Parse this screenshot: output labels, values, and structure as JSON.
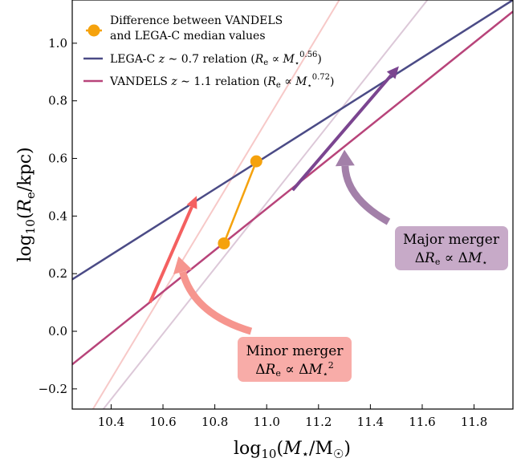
{
  "chart_data": {
    "type": "line",
    "xlim": [
      10.25,
      11.95
    ],
    "ylim": [
      -0.27,
      1.15
    ],
    "x_ticks": [
      10.4,
      10.6,
      10.8,
      11.0,
      11.2,
      11.4,
      11.6,
      11.8
    ],
    "x_tick_labels": [
      "10.4",
      "10.6",
      "10.8",
      "11.0",
      "11.2",
      "11.4",
      "11.6",
      "11.8"
    ],
    "y_ticks": [
      -0.2,
      0.0,
      0.2,
      0.4,
      0.6,
      0.8,
      1.0
    ],
    "y_tick_labels": [
      "−0.2",
      "0.0",
      "0.2",
      "0.4",
      "0.6",
      "0.8",
      "1.0"
    ],
    "xlabel": "log10(M⋆/M☉)",
    "ylabel": "log10(Re/kpc)",
    "legend_position": "top-left",
    "legend": [
      {
        "label": "Difference between VANDELS",
        "label2": "and LEGA-C median values",
        "color": "#f5a20d",
        "kind": "marker"
      },
      {
        "label": "LEGA-C z ∼ 0.7 relation (Re ∝ M⋆^0.56)",
        "color": "#4b4b86",
        "kind": "line"
      },
      {
        "label": "VANDELS z ∼ 1.1 relation (Re ∝ M⋆^0.72)",
        "color": "#b8447a",
        "kind": "line"
      }
    ],
    "series": [
      {
        "name": "LEGA-C z ∼ 0.7 relation",
        "type": "line",
        "color": "#4b4b86",
        "points": [
          [
            10.25,
            0.18
          ],
          [
            11.95,
            1.15
          ]
        ]
      },
      {
        "name": "VANDELS z ∼ 1.1 relation",
        "type": "line",
        "color": "#b8447a",
        "points": [
          [
            10.25,
            -0.115
          ],
          [
            11.95,
            1.11
          ]
        ]
      },
      {
        "type": "line",
        "color": "#f7c9c8",
        "points": [
          [
            10.33,
            -0.27
          ],
          [
            11.28,
            1.15
          ]
        ]
      },
      {
        "type": "line",
        "color": "#dcc8d8",
        "points": [
          [
            10.37,
            -0.27
          ],
          [
            11.62,
            1.15
          ]
        ]
      },
      {
        "name": "Difference between VANDELS and LEGA-C median values",
        "type": "line",
        "color": "#f5a20d",
        "markers": true,
        "points": [
          [
            10.835,
            0.305
          ],
          [
            10.96,
            0.59
          ]
        ]
      }
    ],
    "arrows": [
      {
        "color": "#f46060",
        "from": [
          10.55,
          0.1
        ],
        "to": [
          10.73,
          0.47
        ]
      },
      {
        "color": "#7b4590",
        "from": [
          11.1,
          0.49
        ],
        "to": [
          11.51,
          0.92
        ]
      }
    ],
    "curved_arrows": [
      {
        "color": "#f6958e",
        "from": [
          10.94,
          0.0
        ],
        "to": [
          10.66,
          0.26
        ]
      },
      {
        "color": "#a380a9",
        "from": [
          11.47,
          0.38
        ],
        "to": [
          11.3,
          0.63
        ]
      }
    ],
    "annotations": [
      {
        "line1": "Major merger",
        "line2": "ΔRe ∝ ΔM⋆",
        "bg": "#c7aac8"
      },
      {
        "line1": "Minor merger",
        "line2": "ΔRe ∝ ΔM⋆²",
        "bg": "#f8aca8"
      }
    ]
  }
}
